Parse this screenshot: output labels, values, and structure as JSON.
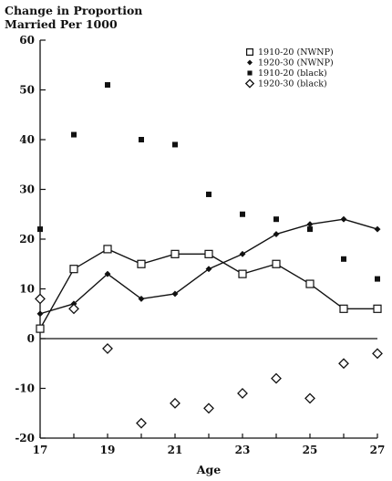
{
  "chart_data": {
    "type": "line",
    "title_lines": [
      "Change in Proportion",
      "Married Per 1000"
    ],
    "xlabel": "Age",
    "ylabel": "",
    "xlim": [
      17,
      27
    ],
    "ylim": [
      -20,
      60
    ],
    "x_ticks": [
      17,
      19,
      21,
      23,
      25,
      27
    ],
    "y_ticks": [
      -20,
      -10,
      0,
      10,
      20,
      30,
      40,
      50,
      60
    ],
    "grid": false,
    "legend_position": "top-right",
    "series": [
      {
        "name": "1910-20 (NWNP)",
        "marker": "open-square",
        "line": true,
        "x": [
          17,
          18,
          19,
          20,
          21,
          22,
          23,
          24,
          25,
          26,
          27
        ],
        "y": [
          2,
          14,
          18,
          15,
          17,
          17,
          13,
          15,
          11,
          6,
          6
        ]
      },
      {
        "name": "1920-30 (NWNP)",
        "marker": "filled-diamond",
        "line": true,
        "x": [
          17,
          18,
          19,
          20,
          21,
          22,
          23,
          24,
          25,
          26,
          27
        ],
        "y": [
          5,
          7,
          13,
          8,
          9,
          14,
          17,
          21,
          23,
          24,
          22
        ]
      },
      {
        "name": "1910-20 (black)",
        "marker": "filled-square",
        "line": false,
        "x": [
          17,
          18,
          19,
          20,
          21,
          22,
          23,
          24,
          25,
          26,
          27
        ],
        "y": [
          22,
          41,
          51,
          40,
          39,
          29,
          25,
          24,
          22,
          16,
          12
        ]
      },
      {
        "name": "1920-30 (black)",
        "marker": "open-diamond",
        "line": false,
        "x": [
          17,
          18,
          19,
          20,
          21,
          22,
          23,
          24,
          25,
          26,
          27
        ],
        "y": [
          8,
          6,
          -2,
          -17,
          -13,
          -14,
          -11,
          -8,
          -12,
          -5,
          -3
        ]
      }
    ]
  },
  "colors": {
    "ink": "#111111",
    "background": "#ffffff"
  }
}
